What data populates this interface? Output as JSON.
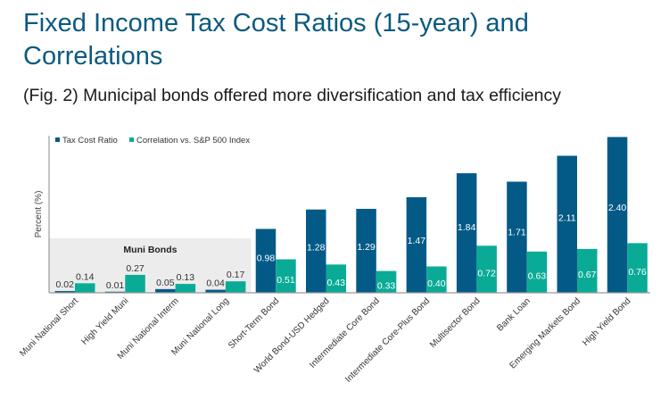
{
  "header": {
    "title": "Fixed Income Tax Cost Ratios (15-year) and Correlations",
    "subtitle": "(Fig. 2) Municipal bonds offered more diversification and tax efficiency"
  },
  "colors": {
    "title": "#0b5a80",
    "tax_cost_ratio": "#045a87",
    "correlation": "#0aab96",
    "muni_highlight": "#ececec",
    "axis": "#888888"
  },
  "chart_data": {
    "type": "bar",
    "title": "Fixed Income Tax Cost Ratios (15-year) and Correlations",
    "subtitle": "(Fig. 2) Municipal bonds offered more diversification and tax efficiency",
    "xlabel": "",
    "ylabel": "Percent (%)",
    "ylim": [
      0,
      2.45
    ],
    "grid": false,
    "legend_position": "top-left",
    "categories": [
      "Muni National Short",
      "High Yield Muni",
      "Muni National Interm",
      "Muni National Long",
      "Short-Term Bond",
      "World Bond-USD Hedged",
      "Intermediate Core Bond",
      "Intermediate Core-Plus Bond",
      "Multisector Bond",
      "Bank Loan",
      "Emerging Markets Bond",
      "High Yield Bond"
    ],
    "series": [
      {
        "name": "Tax Cost Ratio",
        "values": [
          0.02,
          0.01,
          0.05,
          0.04,
          0.98,
          1.28,
          1.29,
          1.47,
          1.84,
          1.71,
          2.11,
          2.4
        ]
      },
      {
        "name": "Correlation vs. S&P 500 Index",
        "values": [
          0.14,
          0.27,
          0.13,
          0.17,
          0.51,
          0.43,
          0.33,
          0.4,
          0.72,
          0.63,
          0.67,
          0.76
        ]
      }
    ],
    "annotations": [
      {
        "text": "Muni Bonds",
        "spans_categories": [
          "Muni National Short",
          "High Yield Muni",
          "Muni National Interm",
          "Muni National Long"
        ]
      }
    ]
  }
}
